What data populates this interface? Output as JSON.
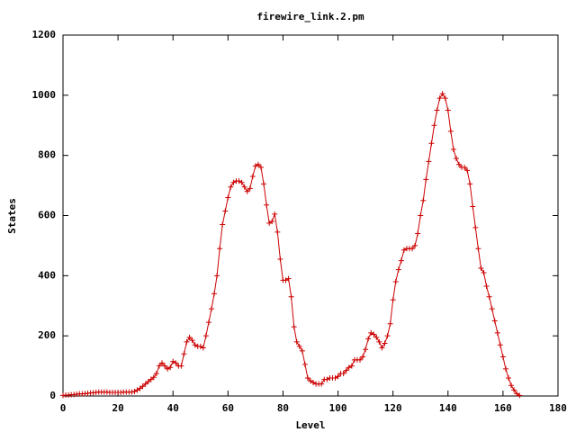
{
  "chart_data": {
    "type": "line",
    "title": "firewire_link.2.pm",
    "x_label": "Level",
    "y_label": "States",
    "xlim": [
      0,
      180
    ],
    "xticks": [
      0,
      20,
      40,
      60,
      80,
      100,
      120,
      140,
      160,
      180
    ],
    "ylim": [
      0,
      1200
    ],
    "yticks": [
      0,
      200,
      400,
      600,
      800,
      1000,
      1200
    ],
    "x": [
      0,
      1,
      2,
      3,
      4,
      5,
      6,
      7,
      8,
      9,
      10,
      11,
      12,
      13,
      14,
      15,
      16,
      17,
      18,
      19,
      20,
      21,
      22,
      23,
      24,
      25,
      26,
      27,
      28,
      29,
      30,
      31,
      32,
      33,
      34,
      35,
      36,
      37,
      38,
      39,
      40,
      41,
      42,
      43,
      44,
      45,
      46,
      47,
      48,
      49,
      50,
      51,
      52,
      53,
      54,
      55,
      56,
      57,
      58,
      59,
      60,
      61,
      62,
      63,
      64,
      65,
      66,
      67,
      68,
      69,
      70,
      71,
      72,
      73,
      74,
      75,
      76,
      77,
      78,
      79,
      80,
      81,
      82,
      83,
      84,
      85,
      86,
      87,
      88,
      89,
      90,
      91,
      92,
      93,
      94,
      95,
      96,
      97,
      98,
      99,
      100,
      101,
      102,
      103,
      104,
      105,
      106,
      107,
      108,
      109,
      110,
      111,
      112,
      113,
      114,
      115,
      116,
      117,
      118,
      119,
      120,
      121,
      122,
      123,
      124,
      125,
      126,
      127,
      128,
      129,
      130,
      131,
      132,
      133,
      134,
      135,
      136,
      137,
      138,
      139,
      140,
      141,
      142,
      143,
      144,
      145,
      146,
      147,
      148,
      149,
      150,
      151,
      152,
      153,
      154,
      155,
      156,
      157,
      158,
      159,
      160,
      161,
      162,
      163,
      164,
      165,
      166
    ],
    "series": [
      {
        "color": "#cc0000",
        "values": [
          2,
          3,
          3,
          4,
          5,
          6,
          7,
          7,
          8,
          9,
          10,
          11,
          12,
          13,
          13,
          13,
          13,
          12,
          12,
          12,
          12,
          12,
          13,
          13,
          13,
          13,
          15,
          20,
          25,
          32,
          40,
          48,
          55,
          62,
          75,
          100,
          110,
          100,
          90,
          95,
          115,
          110,
          100,
          100,
          140,
          180,
          195,
          185,
          170,
          165,
          165,
          160,
          200,
          245,
          290,
          340,
          400,
          490,
          570,
          615,
          660,
          695,
          710,
          715,
          715,
          710,
          695,
          680,
          690,
          730,
          765,
          770,
          760,
          705,
          635,
          575,
          580,
          605,
          545,
          455,
          385,
          385,
          390,
          330,
          230,
          180,
          165,
          150,
          105,
          60,
          50,
          45,
          40,
          40,
          40,
          55,
          55,
          60,
          60,
          60,
          65,
          75,
          75,
          85,
          95,
          100,
          120,
          120,
          120,
          130,
          155,
          190,
          210,
          205,
          195,
          180,
          160,
          175,
          200,
          240,
          320,
          380,
          420,
          450,
          485,
          490,
          490,
          490,
          500,
          540,
          600,
          650,
          720,
          780,
          840,
          900,
          950,
          990,
          1005,
          990,
          950,
          880,
          820,
          790,
          770,
          760,
          760,
          750,
          705,
          630,
          560,
          490,
          425,
          410,
          365,
          330,
          290,
          250,
          210,
          170,
          130,
          90,
          60,
          35,
          20,
          8,
          2
        ]
      }
    ]
  }
}
